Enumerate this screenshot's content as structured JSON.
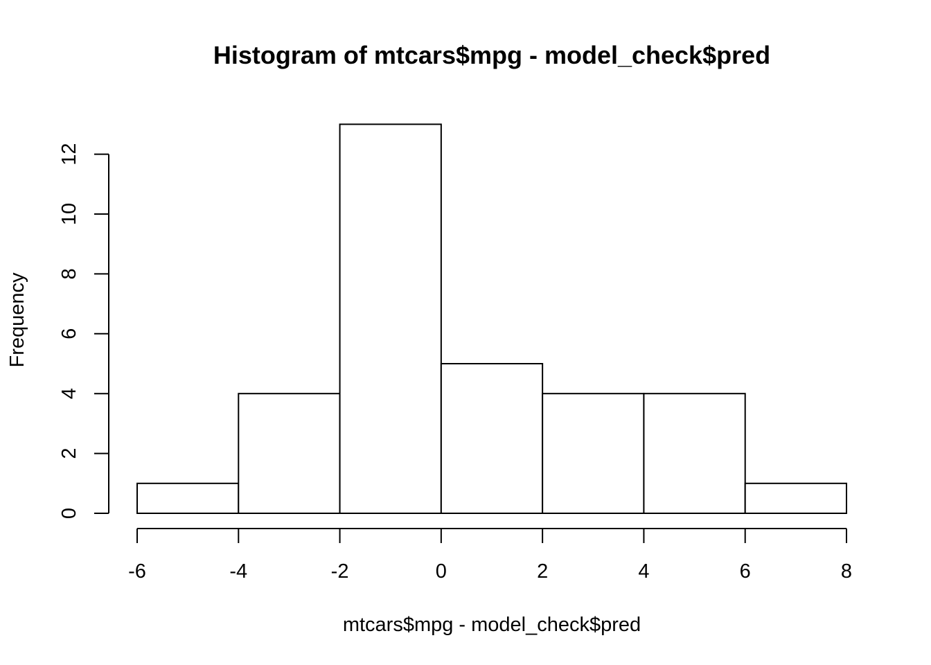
{
  "chart_data": {
    "type": "bar",
    "title": "Histogram of mtcars$mpg - model_check$pred",
    "xlabel": "mtcars$mpg - model_check$pred",
    "ylabel": "Frequency",
    "bin_edges": [
      -6,
      -4,
      -2,
      0,
      2,
      4,
      6,
      8
    ],
    "values": [
      1,
      4,
      13,
      5,
      4,
      4,
      1
    ],
    "xlim": [
      -6,
      8
    ],
    "ylim": [
      0,
      13
    ],
    "x_ticks": [
      -6,
      -4,
      -2,
      0,
      2,
      4,
      6,
      8
    ],
    "x_tick_labels": [
      "-6",
      "-4",
      "-2",
      "0",
      "2",
      "4",
      "6",
      "8"
    ],
    "y_ticks": [
      0,
      2,
      4,
      6,
      8,
      10,
      12
    ],
    "y_tick_labels": [
      "0",
      "2",
      "4",
      "6",
      "8",
      "10",
      "12"
    ],
    "grid": false,
    "legend": "none",
    "bar_fill": "#ffffff",
    "bar_stroke": "#000000"
  }
}
